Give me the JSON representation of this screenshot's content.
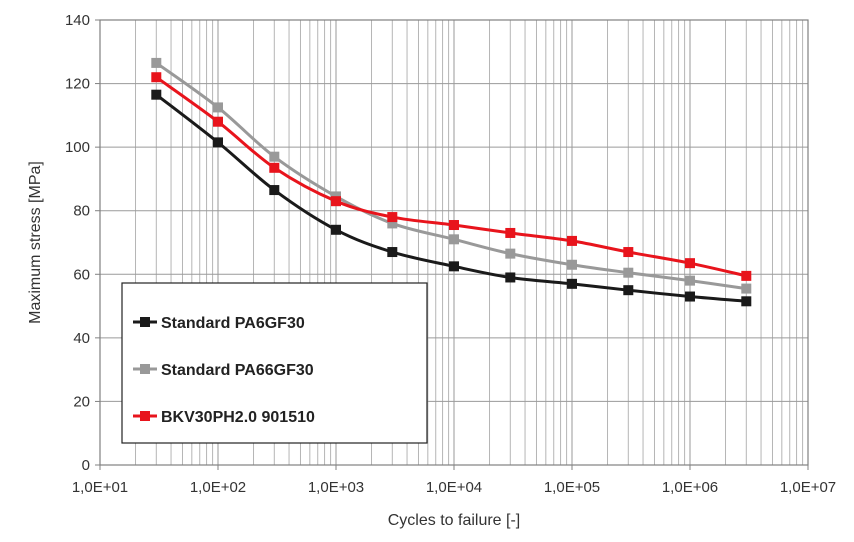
{
  "chart_data": {
    "type": "line",
    "xlabel": "Cycles to failure [-]",
    "ylabel": "Maximum stress [MPa]",
    "x_scale": "log",
    "xlim": [
      10,
      10000000
    ],
    "ylim": [
      0,
      140
    ],
    "grid": true,
    "legend_position": "lower-left",
    "x_tick_labels": [
      "1,0E+01",
      "1,0E+02",
      "1,0E+03",
      "1,0E+04",
      "1,0E+05",
      "1,0E+06",
      "1,0E+07"
    ],
    "y_tick_labels": [
      "0",
      "20",
      "40",
      "60",
      "80",
      "100",
      "120",
      "140"
    ],
    "x": [
      30,
      100,
      300,
      1000,
      3000,
      10000,
      30000,
      100000,
      300000,
      1000000,
      3000000
    ],
    "series": [
      {
        "name": "Standard PA6GF30",
        "color": "#1a1a1a",
        "values": [
          116.5,
          101.5,
          86.5,
          74,
          67,
          62.5,
          59,
          57,
          55,
          53,
          51.5
        ]
      },
      {
        "name": "Standard PA66GF30",
        "color": "#999999",
        "values": [
          126.5,
          112.5,
          97,
          84.5,
          76,
          71,
          66.5,
          63,
          60.5,
          58,
          55.5
        ]
      },
      {
        "name": "BKV30PH2.0 901510",
        "color": "#e8141c",
        "values": [
          122,
          108,
          93.5,
          83,
          78,
          75.5,
          73,
          70.5,
          67,
          63.5,
          59.5
        ]
      }
    ]
  }
}
